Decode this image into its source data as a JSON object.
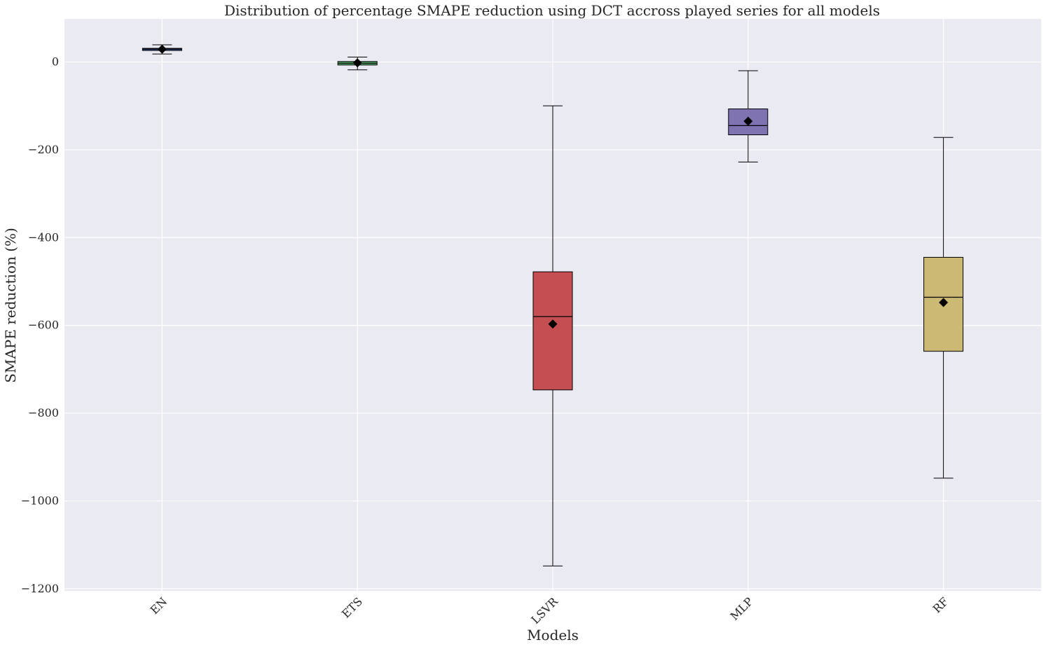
{
  "chart_data": {
    "type": "box",
    "title": "Distribution of percentage SMAPE reduction using DCT accross played series for all models",
    "xlabel": "Models",
    "ylabel": "SMAPE reduction (%)",
    "ylim": [
      -1205,
      98
    ],
    "yticks": [
      0,
      -200,
      -400,
      -600,
      -800,
      -1000,
      -1200
    ],
    "ytick_labels": [
      "0",
      "−200",
      "−400",
      "−600",
      "−800",
      "−1000",
      "−1200"
    ],
    "grid": true,
    "categories": [
      "EN",
      "ETS",
      "LSVR",
      "MLP",
      "RF"
    ],
    "boxes": [
      {
        "name": "EN",
        "color": "#4c72b0",
        "whisker_low": 18,
        "q1": 26,
        "median": 29,
        "q3": 31,
        "whisker_high": 39,
        "mean": 29
      },
      {
        "name": "ETS",
        "color": "#55a868",
        "whisker_low": -18,
        "q1": -7,
        "median": -3,
        "q3": 1,
        "whisker_high": 11,
        "mean": -2
      },
      {
        "name": "LSVR",
        "color": "#c44e52",
        "whisker_low": -1148,
        "q1": -747,
        "median": -580,
        "q3": -478,
        "whisker_high": -100,
        "mean": -597
      },
      {
        "name": "MLP",
        "color": "#8172b2",
        "whisker_low": -228,
        "q1": -166,
        "median": -145,
        "q3": -107,
        "whisker_high": -20,
        "mean": -135
      },
      {
        "name": "RF",
        "color": "#ccb974",
        "whisker_low": -948,
        "q1": -659,
        "median": -536,
        "q3": -445,
        "whisker_high": -172,
        "mean": -548
      }
    ],
    "colors": {
      "plot_background": "#eaeaf2",
      "grid": "#ffffff",
      "edge": "#000000",
      "mean_marker": "#000000"
    }
  }
}
